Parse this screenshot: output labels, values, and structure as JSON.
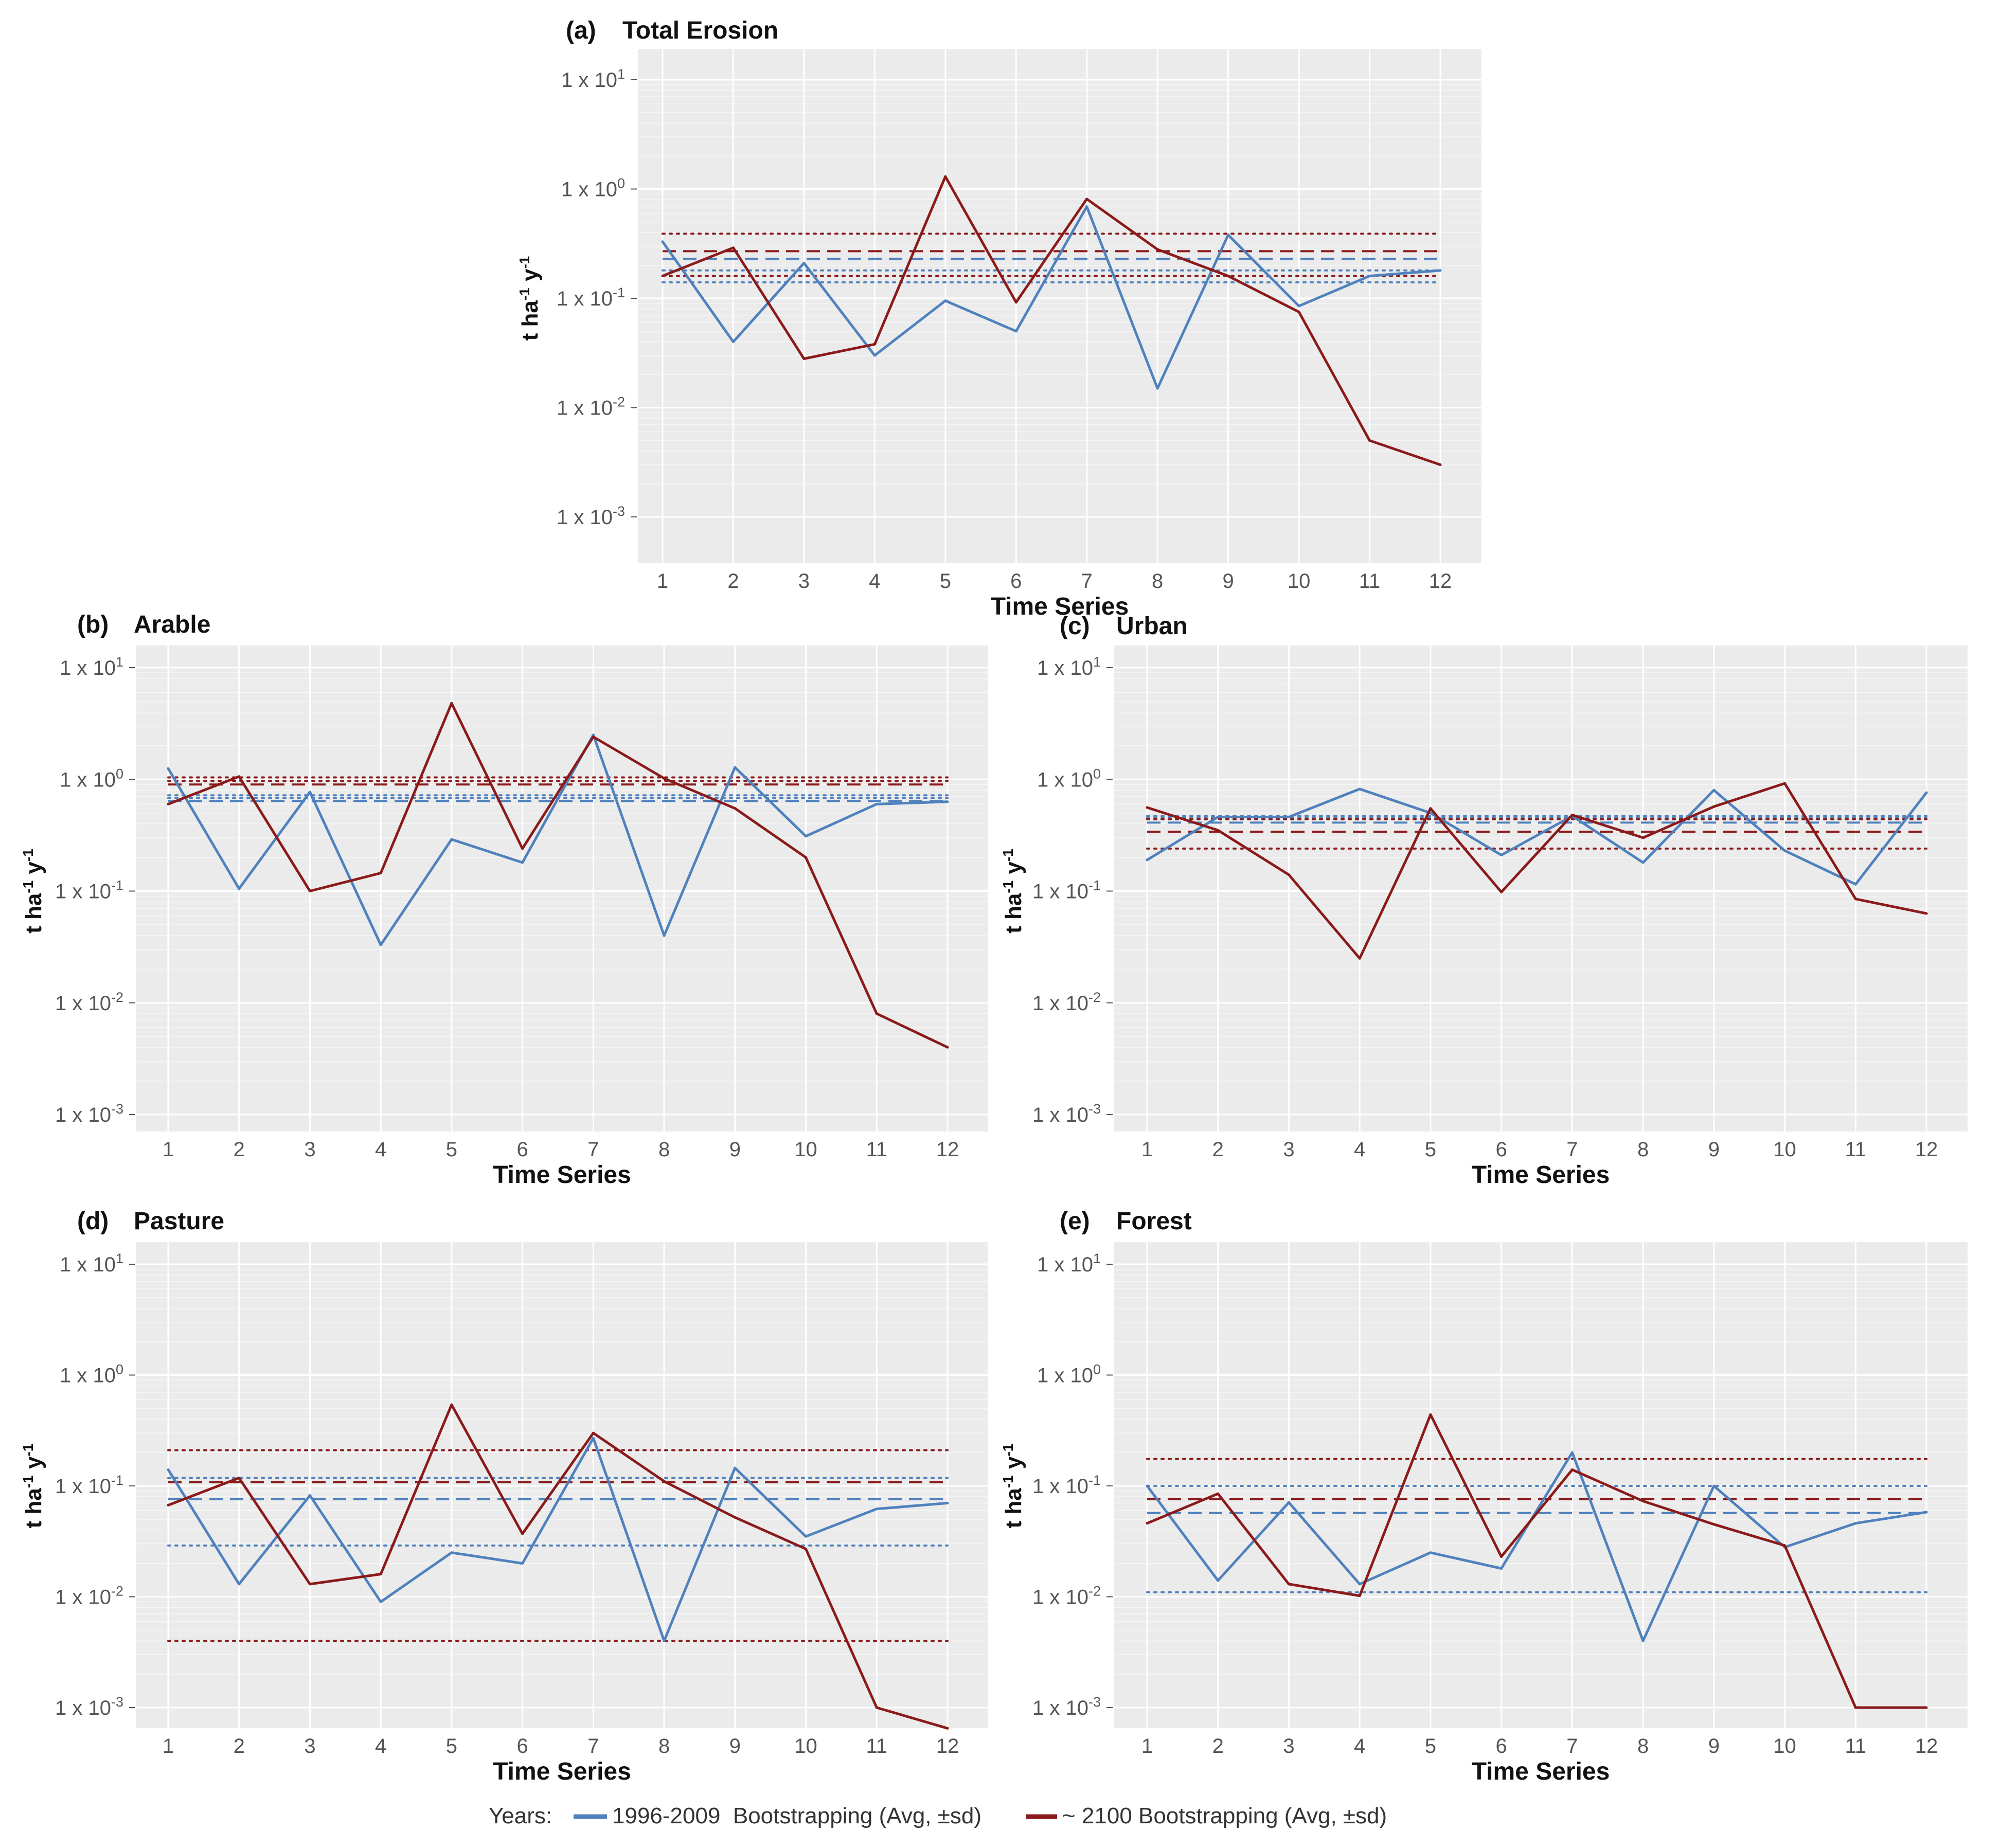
{
  "legend": {
    "title": "Years:",
    "entries": [
      {
        "label": "1996-2009  Bootstrapping (Avg, ±sd)",
        "color": "#4f81bd"
      },
      {
        "label": "~ 2100 Bootstrapping (Avg, ±sd)",
        "color": "#8b1a1a"
      }
    ]
  },
  "colors": {
    "blue": "#4f81bd",
    "red": "#8b1a1a",
    "panel_bg": "#ebebeb",
    "grid": "#ffffff"
  },
  "chart_data": [
    {
      "id": "a",
      "letter": "(a)",
      "title": "Total Erosion",
      "type": "line",
      "xlabel": "Time Series",
      "ylabel": "t ha-1 y-1",
      "yscale": "log",
      "x": [
        1,
        2,
        3,
        4,
        5,
        6,
        7,
        8,
        9,
        10,
        11,
        12
      ],
      "ylim": [
        0.001,
        10
      ],
      "yticks": [
        {
          "value": 10,
          "base": "1 x 10",
          "exp": "1"
        },
        {
          "value": 1,
          "base": "1 x 10",
          "exp": "0"
        },
        {
          "value": 0.1,
          "base": "1 x 10",
          "exp": "-1"
        },
        {
          "value": 0.01,
          "base": "1 x 10",
          "exp": "-2"
        },
        {
          "value": 0.001,
          "base": "1 x 10",
          "exp": "-3"
        }
      ],
      "series": [
        {
          "name": "1996-2009",
          "color": "#4f81bd",
          "values": [
            0.33,
            0.04,
            0.21,
            0.03,
            0.095,
            0.05,
            0.69,
            0.015,
            0.38,
            0.085,
            0.16,
            0.18
          ],
          "avg": 0.23,
          "sd_upper": 0.18,
          "sd_lower": 0.14
        },
        {
          "name": "~2100",
          "color": "#8b1a1a",
          "values": [
            0.16,
            0.29,
            0.028,
            0.038,
            1.3,
            0.092,
            0.81,
            0.28,
            0.16,
            0.075,
            0.005,
            0.003
          ],
          "avg": 0.27,
          "sd_upper": 0.39,
          "sd_lower": 0.16
        }
      ]
    },
    {
      "id": "b",
      "letter": "(b)",
      "title": "Arable",
      "type": "line",
      "xlabel": "Time Series",
      "ylabel": "t ha-1 y-1",
      "yscale": "log",
      "x": [
        1,
        2,
        3,
        4,
        5,
        6,
        7,
        8,
        9,
        10,
        11,
        12
      ],
      "ylim": [
        0.001,
        10
      ],
      "yticks": [
        {
          "value": 10,
          "base": "1 x 10",
          "exp": "1"
        },
        {
          "value": 1,
          "base": "1 x 10",
          "exp": "0"
        },
        {
          "value": 0.1,
          "base": "1 x 10",
          "exp": "-1"
        },
        {
          "value": 0.01,
          "base": "1 x 10",
          "exp": "-2"
        },
        {
          "value": 0.001,
          "base": "1 x 10",
          "exp": "-3"
        }
      ],
      "series": [
        {
          "name": "1996-2009",
          "color": "#4f81bd",
          "values": [
            1.25,
            0.105,
            0.77,
            0.033,
            0.29,
            0.18,
            2.5,
            0.04,
            1.28,
            0.31,
            0.6,
            0.63
          ],
          "avg": 0.64,
          "sd_upper": 0.72,
          "sd_lower": 0.68
        },
        {
          "name": "~2100",
          "color": "#8b1a1a",
          "values": [
            0.6,
            1.06,
            0.1,
            0.145,
            4.8,
            0.24,
            2.4,
            1.02,
            0.55,
            0.2,
            0.008,
            0.004
          ],
          "avg": 0.9,
          "sd_upper": 1.04,
          "sd_lower": 0.97
        }
      ]
    },
    {
      "id": "c",
      "letter": "(c)",
      "title": "Urban",
      "type": "line",
      "xlabel": "Time Series",
      "ylabel": "t ha-1 y-1",
      "yscale": "log",
      "x": [
        1,
        2,
        3,
        4,
        5,
        6,
        7,
        8,
        9,
        10,
        11,
        12
      ],
      "ylim": [
        0.001,
        10
      ],
      "yticks": [
        {
          "value": 10,
          "base": "1 x 10",
          "exp": "1"
        },
        {
          "value": 1,
          "base": "1 x 10",
          "exp": "0"
        },
        {
          "value": 0.1,
          "base": "1 x 10",
          "exp": "-1"
        },
        {
          "value": 0.01,
          "base": "1 x 10",
          "exp": "-2"
        },
        {
          "value": 0.001,
          "base": "1 x 10",
          "exp": "-3"
        }
      ],
      "series": [
        {
          "name": "1996-2009",
          "color": "#4f81bd",
          "values": [
            0.19,
            0.46,
            0.46,
            0.82,
            0.5,
            0.21,
            0.47,
            0.18,
            0.8,
            0.23,
            0.115,
            0.76
          ],
          "avg": 0.41,
          "sd_upper": 0.47,
          "sd_lower": 0.45
        },
        {
          "name": "~2100",
          "color": "#8b1a1a",
          "values": [
            0.56,
            0.35,
            0.14,
            0.025,
            0.55,
            0.098,
            0.48,
            0.3,
            0.57,
            0.92,
            0.085,
            0.063
          ],
          "avg": 0.34,
          "sd_upper": 0.44,
          "sd_lower": 0.24
        }
      ]
    },
    {
      "id": "d",
      "letter": "(d)",
      "title": "Pasture",
      "type": "line",
      "xlabel": "Time Series",
      "ylabel": "t ha-1 y-1",
      "yscale": "log",
      "x": [
        1,
        2,
        3,
        4,
        5,
        6,
        7,
        8,
        9,
        10,
        11,
        12
      ],
      "ylim": [
        0.001,
        10
      ],
      "yticks": [
        {
          "value": 10,
          "base": "1 x 10",
          "exp": "1"
        },
        {
          "value": 1,
          "base": "1 x 10",
          "exp": "0"
        },
        {
          "value": 0.1,
          "base": "1 x 10",
          "exp": "-1"
        },
        {
          "value": 0.01,
          "base": "1 x 10",
          "exp": "-2"
        },
        {
          "value": 0.001,
          "base": "1 x 10",
          "exp": "-3"
        }
      ],
      "series": [
        {
          "name": "1996-2009",
          "color": "#4f81bd",
          "values": [
            0.14,
            0.013,
            0.082,
            0.009,
            0.025,
            0.02,
            0.27,
            0.004,
            0.145,
            0.035,
            0.062,
            0.07
          ],
          "avg": 0.076,
          "sd_upper": 0.118,
          "sd_lower": 0.029
        },
        {
          "name": "~2100",
          "color": "#8b1a1a",
          "values": [
            0.067,
            0.118,
            0.013,
            0.016,
            0.54,
            0.037,
            0.3,
            0.11,
            0.052,
            0.027,
            0.001,
            0.00065
          ],
          "avg": 0.108,
          "sd_upper": 0.21,
          "sd_lower": 0.004
        }
      ]
    },
    {
      "id": "e",
      "letter": "(e)",
      "title": "Forest",
      "type": "line",
      "xlabel": "Time Series",
      "ylabel": "t ha-1 y-1",
      "yscale": "log",
      "x": [
        1,
        2,
        3,
        4,
        5,
        6,
        7,
        8,
        9,
        10,
        11,
        12
      ],
      "ylim": [
        0.001,
        10
      ],
      "yticks": [
        {
          "value": 10,
          "base": "1 x 10",
          "exp": "1"
        },
        {
          "value": 1,
          "base": "1 x 10",
          "exp": "0"
        },
        {
          "value": 0.1,
          "base": "1 x 10",
          "exp": "-1"
        },
        {
          "value": 0.01,
          "base": "1 x 10",
          "exp": "-2"
        },
        {
          "value": 0.001,
          "base": "1 x 10",
          "exp": "-3"
        }
      ],
      "series": [
        {
          "name": "1996-2009",
          "color": "#4f81bd",
          "values": [
            0.1,
            0.014,
            0.071,
            0.013,
            0.025,
            0.018,
            0.2,
            0.004,
            0.1,
            0.028,
            0.046,
            0.058
          ],
          "avg": 0.057,
          "sd_upper": 0.1,
          "sd_lower": 0.011
        },
        {
          "name": "~2100",
          "color": "#8b1a1a",
          "values": [
            0.046,
            0.085,
            0.013,
            0.0102,
            0.44,
            0.023,
            0.14,
            0.073,
            0.045,
            0.029,
            0.001,
            0.001
          ],
          "avg": 0.076,
          "sd_upper": 0.175,
          "sd_lower": null
        }
      ]
    }
  ]
}
